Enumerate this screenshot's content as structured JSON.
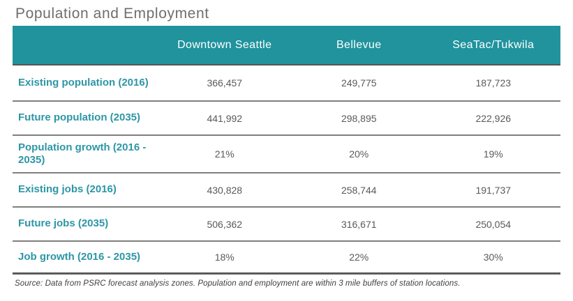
{
  "page": {
    "title": "Population and Employment"
  },
  "colors": {
    "header_background": "#20939d",
    "header_text": "#ffffff",
    "row_label_teal": "#2d96a6",
    "value_text_gray": "#595959",
    "divider_gray": "#7f7f7f",
    "title_gray": "#6e6e6e"
  },
  "table": {
    "columns": [
      "Downtown Seattle",
      "Bellevue",
      "SeaTac/Tukwila"
    ],
    "rows": [
      {
        "label": "Existing population (2016)",
        "values": [
          "366,457",
          "249,775",
          "187,723"
        ]
      },
      {
        "label": "Future population (2035)",
        "values": [
          "441,992",
          "298,895",
          "222,926"
        ]
      },
      {
        "label": "Population growth (2016 - 2035)",
        "values": [
          "21%",
          "20%",
          "19%"
        ]
      },
      {
        "label": "Existing jobs (2016)",
        "values": [
          "430,828",
          "258,744",
          "191,737"
        ]
      },
      {
        "label": "Future jobs (2035)",
        "values": [
          "506,362",
          "316,671",
          "250,054"
        ]
      },
      {
        "label": "Job growth (2016 - 2035)",
        "values": [
          "18%",
          "22%",
          "30%"
        ]
      }
    ],
    "source_note": "Source: Data from PSRC forecast analysis zones. Population and employment are within 3 mile buffers of station locations."
  },
  "chart_data": {
    "type": "table",
    "title": "Population and Employment",
    "columns": [
      "Downtown Seattle",
      "Bellevue",
      "SeaTac/Tukwila"
    ],
    "rows": [
      {
        "label": "Existing population (2016)",
        "values": [
          "366,457",
          "249,775",
          "187,723"
        ]
      },
      {
        "label": "Future population (2035)",
        "values": [
          "441,992",
          "298,895",
          "222,926"
        ]
      },
      {
        "label": "Population growth (2016 - 2035)",
        "values": [
          "21%",
          "20%",
          "19%"
        ]
      },
      {
        "label": "Existing jobs (2016)",
        "values": [
          "430,828",
          "258,744",
          "191,737"
        ]
      },
      {
        "label": "Future jobs (2035)",
        "values": [
          "506,362",
          "316,671",
          "250,054"
        ]
      },
      {
        "label": "Job growth (2016 - 2035)",
        "values": [
          "18%",
          "22%",
          "30%"
        ]
      }
    ],
    "source": "Source: Data from PSRC forecast analysis zones. Population and employment are within 3 mile buffers of station locations."
  }
}
